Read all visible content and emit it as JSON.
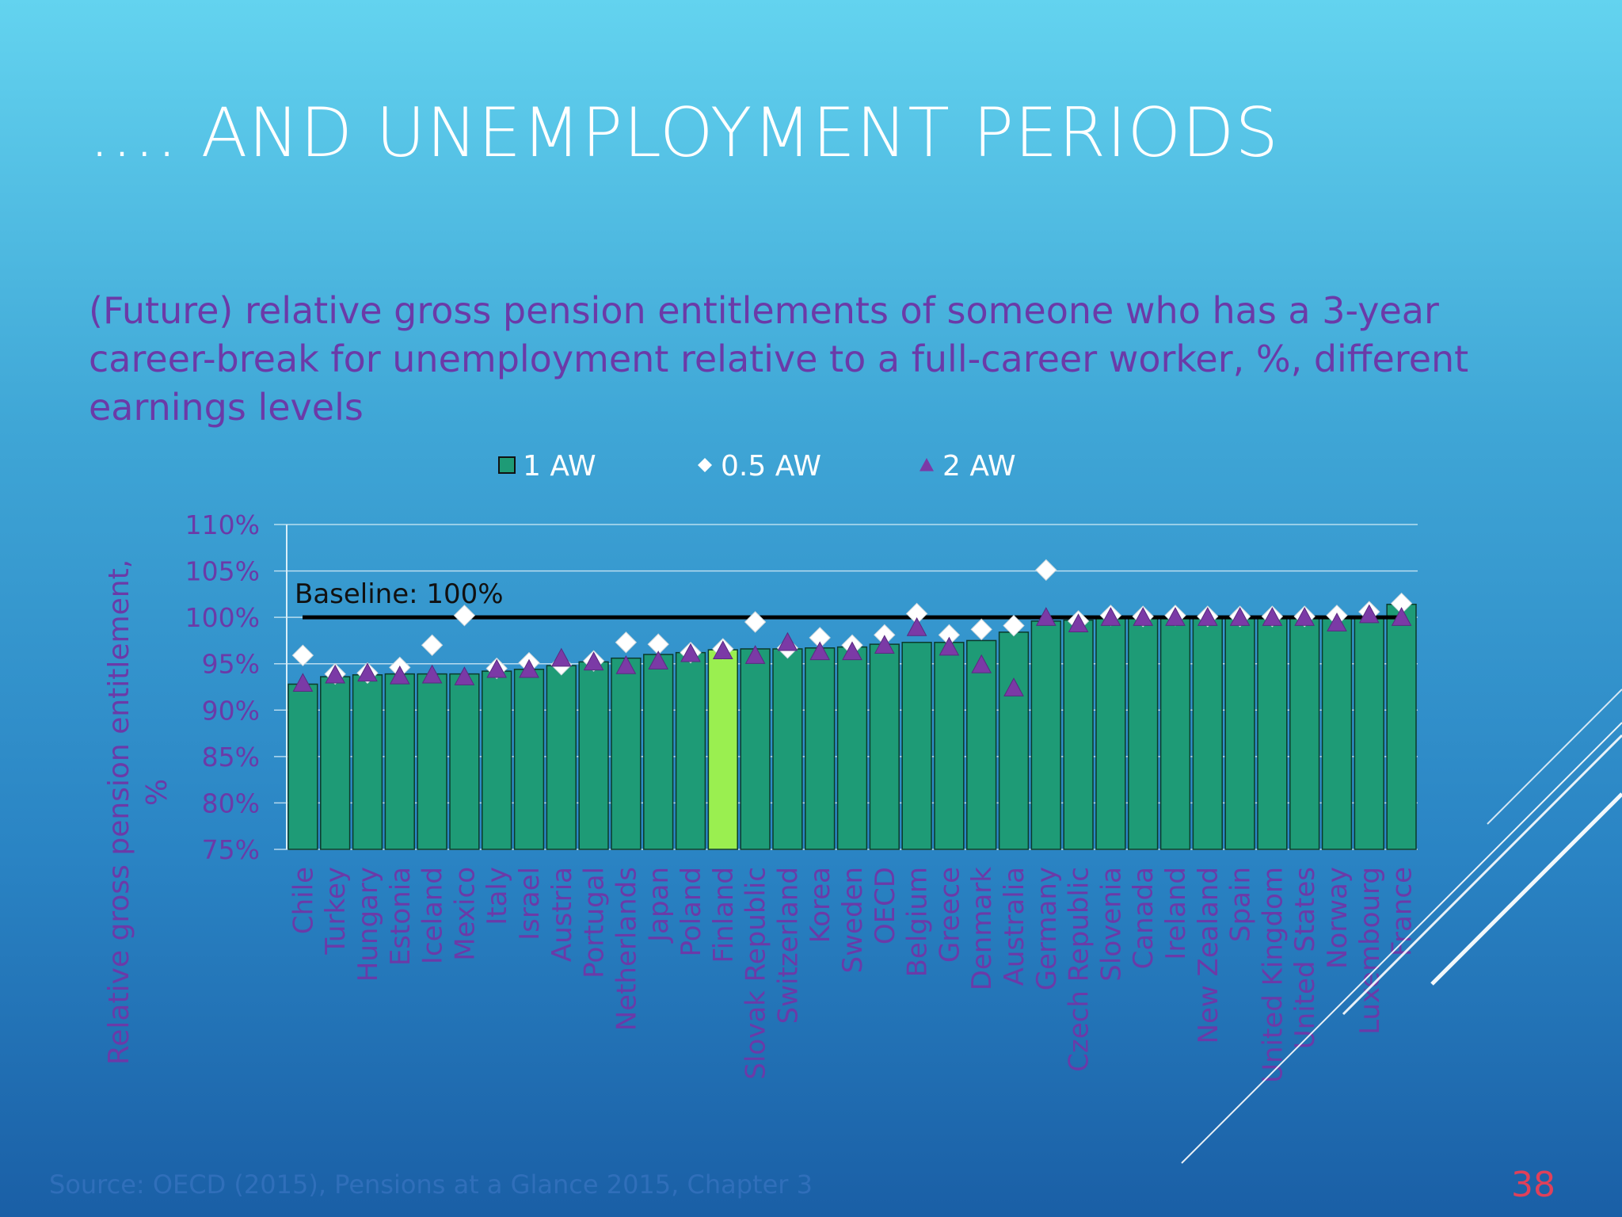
{
  "slide": {
    "title": ".... AND UNEMPLOYMENT PERIODS",
    "subtitle": "(Future) relative gross pension entitlements of someone who has a 3-year career-break for unemployment  relative to a full-career worker, %, different earnings levels",
    "source": "Source: OECD (2015), Pensions at a Glance 2015, Chapter 3",
    "page_number": "38"
  },
  "chart_data": {
    "type": "bar",
    "title": "",
    "xlabel": "",
    "ylabel": "Relative gross pension entitlement, %",
    "ylim": [
      75,
      110
    ],
    "ytick_labels": [
      "75%",
      "80%",
      "85%",
      "90%",
      "95%",
      "100%",
      "105%",
      "110%"
    ],
    "yticks": [
      75,
      80,
      85,
      90,
      95,
      100,
      105,
      110
    ],
    "grid": true,
    "legend_position": "top",
    "baseline": {
      "value": 100,
      "label": "Baseline: 100%"
    },
    "categories": [
      "Chile",
      "Turkey",
      "Hungary",
      "Estonia",
      "Iceland",
      "Mexico",
      "Italy",
      "Israel",
      "Austria",
      "Portugal",
      "Netherlands",
      "Japan",
      "Poland",
      "Finland",
      "Slovak Republic",
      "Switzerland",
      "Korea",
      "Sweden",
      "OECD",
      "Belgium",
      "Greece",
      "Denmark",
      "Australia",
      "Germany",
      "Czech Republic",
      "Slovenia",
      "Canada",
      "Ireland",
      "New Zealand",
      "Spain",
      "United Kingdom",
      "United States",
      "Norway",
      "Luxembourg",
      "France"
    ],
    "highlight_category": "Finland",
    "series": [
      {
        "name": "1 AW",
        "marker": "bar",
        "values": [
          92.8,
          93.6,
          93.8,
          93.9,
          93.9,
          93.9,
          94.2,
          94.4,
          94.8,
          95.2,
          95.6,
          96.0,
          96.2,
          96.5,
          96.6,
          96.6,
          96.7,
          96.8,
          97.1,
          97.3,
          97.3,
          97.5,
          98.4,
          99.6,
          99.7,
          99.9,
          99.9,
          99.9,
          99.9,
          100.0,
          100.0,
          100.0,
          100.0,
          100.0,
          101.4
        ]
      },
      {
        "name": "0.5 AW",
        "marker": "diamond",
        "values": [
          95.9,
          93.9,
          94.0,
          94.6,
          97.0,
          100.2,
          94.5,
          95.1,
          94.9,
          95.3,
          97.3,
          97.1,
          96.2,
          96.6,
          99.5,
          96.7,
          97.8,
          97.0,
          98.1,
          100.4,
          98.1,
          98.7,
          99.1,
          105.1,
          99.6,
          100.2,
          100.1,
          100.2,
          100.1,
          100.1,
          100.1,
          100.1,
          100.2,
          100.6,
          101.5
        ]
      },
      {
        "name": "2 AW",
        "marker": "triangle",
        "values": [
          92.9,
          93.8,
          94.0,
          93.7,
          93.8,
          93.6,
          94.4,
          94.4,
          95.6,
          95.2,
          94.8,
          95.3,
          96.1,
          96.4,
          95.9,
          97.3,
          96.3,
          96.3,
          97.0,
          98.9,
          96.8,
          94.9,
          92.4,
          100.0,
          99.3,
          100.0,
          100.0,
          100.0,
          100.0,
          100.0,
          100.0,
          100.0,
          99.4,
          100.3,
          100.0
        ]
      }
    ],
    "colors": {
      "bar_fill": "#1e9b76",
      "bar_highlight": "#9aef50",
      "bar_stroke": "#0b3a2c",
      "diamond_fill": "#ffffff",
      "triangle_fill": "#7b3aa6",
      "axis_text": "#6b3aa8",
      "grid": "#d8eef8",
      "baseline_line": "#000000"
    }
  }
}
